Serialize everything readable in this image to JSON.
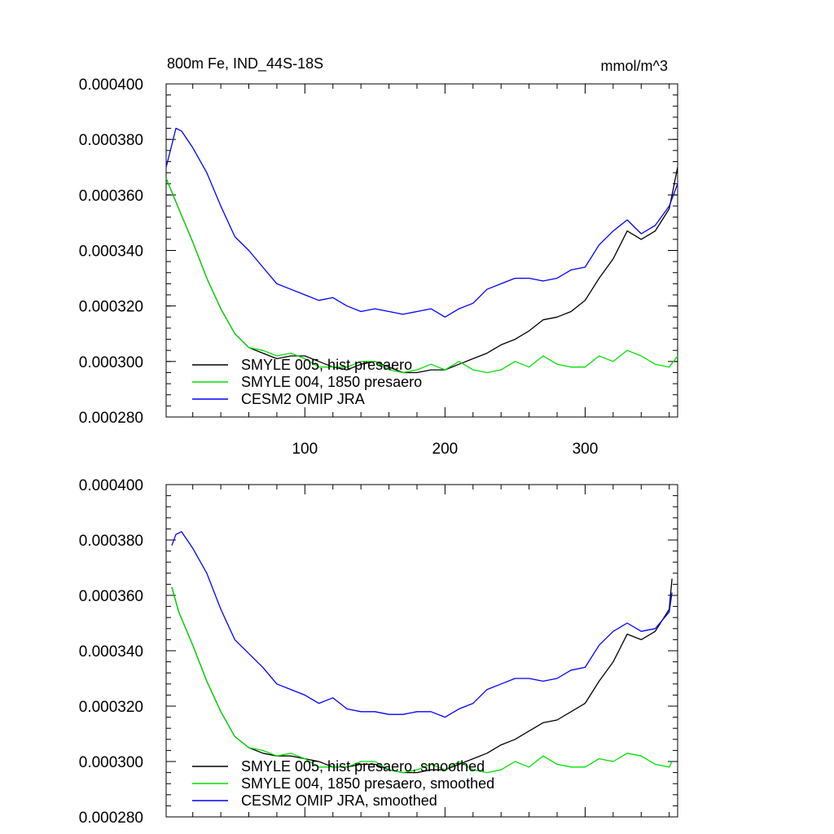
{
  "chart_data": [
    {
      "type": "line",
      "title": "800m Fe, IND_44S-18S",
      "units": "mmol/m^3",
      "xlim": [
        1,
        366
      ],
      "ylim": [
        0.00028,
        0.0004
      ],
      "xticks": [
        100,
        200,
        300
      ],
      "xtick_labels": [
        "100",
        "200",
        "300"
      ],
      "yticks": [
        0.00028,
        0.0003,
        0.00032,
        0.00034,
        0.00036,
        0.00038,
        0.0004
      ],
      "ytick_labels": [
        "0.000280",
        "0.000300",
        "0.000320",
        "0.000340",
        "0.000360",
        "0.000380",
        "0.000400"
      ],
      "legend_position": "bottom-left",
      "series": [
        {
          "name": "SMYLE 005, hist presaero",
          "color": "#000000",
          "x": [
            1,
            10,
            20,
            30,
            40,
            50,
            60,
            70,
            80,
            90,
            100,
            110,
            120,
            130,
            140,
            150,
            160,
            170,
            180,
            190,
            200,
            210,
            220,
            230,
            240,
            250,
            260,
            270,
            280,
            290,
            300,
            310,
            320,
            330,
            340,
            350,
            360,
            366
          ],
          "values": [
            0.000366,
            0.000355,
            0.000343,
            0.00033,
            0.000319,
            0.00031,
            0.000305,
            0.000303,
            0.000301,
            0.000302,
            0.000302,
            0.0003,
            0.000298,
            0.000297,
            0.000299,
            0.0003,
            0.000298,
            0.000296,
            0.000296,
            0.000297,
            0.000297,
            0.000299,
            0.000301,
            0.000303,
            0.000306,
            0.000308,
            0.000311,
            0.000315,
            0.000316,
            0.000318,
            0.000322,
            0.00033,
            0.000337,
            0.000347,
            0.000344,
            0.000347,
            0.000355,
            0.00037
          ]
        },
        {
          "name": "SMYLE 004, 1850 presaero",
          "color": "#00e000",
          "x": [
            1,
            10,
            20,
            30,
            40,
            50,
            60,
            70,
            80,
            90,
            100,
            110,
            120,
            130,
            140,
            150,
            160,
            170,
            180,
            190,
            200,
            210,
            220,
            230,
            240,
            250,
            260,
            270,
            280,
            290,
            300,
            310,
            320,
            330,
            340,
            350,
            360,
            366
          ],
          "values": [
            0.000366,
            0.000355,
            0.000343,
            0.00033,
            0.000319,
            0.00031,
            0.000305,
            0.000304,
            0.000302,
            0.000303,
            0.000301,
            0.000298,
            0.000298,
            0.000298,
            0.0003,
            0.0003,
            0.000297,
            0.000296,
            0.000297,
            0.000299,
            0.000297,
            0.0003,
            0.000297,
            0.000296,
            0.000297,
            0.0003,
            0.000298,
            0.000302,
            0.000299,
            0.000298,
            0.000298,
            0.000302,
            0.0003,
            0.000304,
            0.000302,
            0.000299,
            0.000298,
            0.000302
          ]
        },
        {
          "name": "CESM2 OMIP JRA",
          "color": "#0000ff",
          "x": [
            1,
            5,
            8,
            12,
            20,
            30,
            40,
            50,
            60,
            70,
            80,
            90,
            100,
            110,
            120,
            130,
            140,
            150,
            160,
            170,
            180,
            190,
            200,
            210,
            220,
            230,
            240,
            250,
            260,
            270,
            280,
            290,
            300,
            310,
            320,
            330,
            340,
            350,
            360,
            366
          ],
          "values": [
            0.00037,
            0.000378,
            0.000384,
            0.000383,
            0.000377,
            0.000368,
            0.000356,
            0.000345,
            0.00034,
            0.000334,
            0.000328,
            0.000326,
            0.000324,
            0.000322,
            0.000323,
            0.00032,
            0.000318,
            0.000319,
            0.000318,
            0.000317,
            0.000318,
            0.000319,
            0.000316,
            0.000319,
            0.000321,
            0.000326,
            0.000328,
            0.00033,
            0.00033,
            0.000329,
            0.00033,
            0.000333,
            0.000334,
            0.000342,
            0.000347,
            0.000351,
            0.000346,
            0.000349,
            0.000356,
            0.000364
          ]
        }
      ]
    },
    {
      "type": "line",
      "title": "",
      "units": "",
      "xlim": [
        1,
        366
      ],
      "ylim": [
        0.00028,
        0.0004
      ],
      "xticks": [
        100,
        200,
        300
      ],
      "xtick_labels": [],
      "yticks": [
        0.00028,
        0.0003,
        0.00032,
        0.00034,
        0.00036,
        0.00038,
        0.0004
      ],
      "ytick_labels": [
        "0.000280",
        "0.000300",
        "0.000320",
        "0.000340",
        "0.000360",
        "0.000380",
        "0.000400"
      ],
      "legend_position": "bottom-left",
      "series": [
        {
          "name": "SMYLE 005, hist presaero, smoothed",
          "color": "#000000",
          "x": [
            5,
            10,
            20,
            30,
            40,
            50,
            60,
            70,
            80,
            90,
            100,
            110,
            120,
            130,
            140,
            150,
            160,
            170,
            180,
            190,
            200,
            210,
            220,
            230,
            240,
            250,
            260,
            270,
            280,
            290,
            300,
            310,
            320,
            330,
            340,
            350,
            360,
            362
          ],
          "values": [
            0.000363,
            0.000354,
            0.000342,
            0.000329,
            0.000318,
            0.000309,
            0.000305,
            0.000303,
            0.000302,
            0.000302,
            0.000301,
            0.0003,
            0.000298,
            0.000298,
            0.000299,
            0.000299,
            0.000297,
            0.000296,
            0.000296,
            0.000297,
            0.000297,
            0.000299,
            0.000301,
            0.000303,
            0.000306,
            0.000308,
            0.000311,
            0.000314,
            0.000315,
            0.000318,
            0.000321,
            0.000329,
            0.000336,
            0.000346,
            0.000344,
            0.000347,
            0.000355,
            0.000366
          ]
        },
        {
          "name": "SMYLE 004, 1850 presaero, smoothed",
          "color": "#00e000",
          "x": [
            5,
            10,
            20,
            30,
            40,
            50,
            60,
            70,
            80,
            90,
            100,
            110,
            120,
            130,
            140,
            150,
            160,
            170,
            180,
            190,
            200,
            210,
            220,
            230,
            240,
            250,
            260,
            270,
            280,
            290,
            300,
            310,
            320,
            330,
            340,
            350,
            360,
            362
          ],
          "values": [
            0.000363,
            0.000354,
            0.000342,
            0.000329,
            0.000318,
            0.000309,
            0.000305,
            0.000304,
            0.000302,
            0.000303,
            0.000301,
            0.000298,
            0.000298,
            0.000298,
            0.0003,
            0.0003,
            0.000297,
            0.000296,
            0.000297,
            0.000299,
            0.000297,
            0.0003,
            0.000297,
            0.000296,
            0.000297,
            0.0003,
            0.000298,
            0.000302,
            0.000299,
            0.000298,
            0.000298,
            0.000301,
            0.0003,
            0.000303,
            0.000302,
            0.000299,
            0.000298,
            0.0003
          ]
        },
        {
          "name": "CESM2 OMIP JRA, smoothed",
          "color": "#0000ff",
          "x": [
            5,
            8,
            12,
            20,
            30,
            40,
            50,
            60,
            70,
            80,
            90,
            100,
            110,
            120,
            130,
            140,
            150,
            160,
            170,
            180,
            190,
            200,
            210,
            220,
            230,
            240,
            250,
            260,
            270,
            280,
            290,
            300,
            310,
            320,
            330,
            340,
            350,
            360,
            362
          ],
          "values": [
            0.000378,
            0.000382,
            0.000383,
            0.000377,
            0.000368,
            0.000355,
            0.000344,
            0.000339,
            0.000334,
            0.000328,
            0.000326,
            0.000324,
            0.000321,
            0.000323,
            0.000319,
            0.000318,
            0.000318,
            0.000317,
            0.000317,
            0.000318,
            0.000318,
            0.000316,
            0.000319,
            0.000321,
            0.000326,
            0.000328,
            0.00033,
            0.00033,
            0.000329,
            0.00033,
            0.000333,
            0.000334,
            0.000342,
            0.000347,
            0.00035,
            0.000347,
            0.000348,
            0.000354,
            0.000361
          ]
        }
      ]
    }
  ]
}
